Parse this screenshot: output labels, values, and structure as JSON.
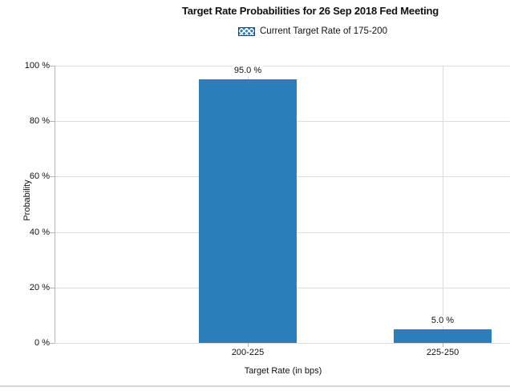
{
  "chart_data": {
    "type": "bar",
    "title": "Target Rate Probabilities for 26 Sep 2018 Fed Meeting",
    "legend": {
      "label": "Current Target Rate of 175-200",
      "marker": "blue-crosshatch-swatch",
      "position": "top-center"
    },
    "categories": [
      "200-225",
      "225-250"
    ],
    "series": [
      {
        "name": "Current Target Rate of 175-200",
        "values": [
          95.0,
          5.0
        ]
      }
    ],
    "data_labels": [
      "95.0 %",
      "5.0 %"
    ],
    "xlabel": "Target Rate (in bps)",
    "ylabel": "Probability",
    "ylim": [
      0,
      100
    ],
    "ytick_labels": [
      "0 %",
      "20 %",
      "40 %",
      "60 %",
      "80 %",
      "100 %"
    ],
    "grid": "horizontal value gridlines and vertical category gridlines",
    "colors": {
      "bar": "#2a7fba",
      "gridline": "#dcdcdc",
      "axis": "#b5b5b5",
      "text": "#111111",
      "legend_marker_border": "#17466e",
      "background": "#ffffff",
      "bottom_divider": "#d6d6d3"
    }
  }
}
